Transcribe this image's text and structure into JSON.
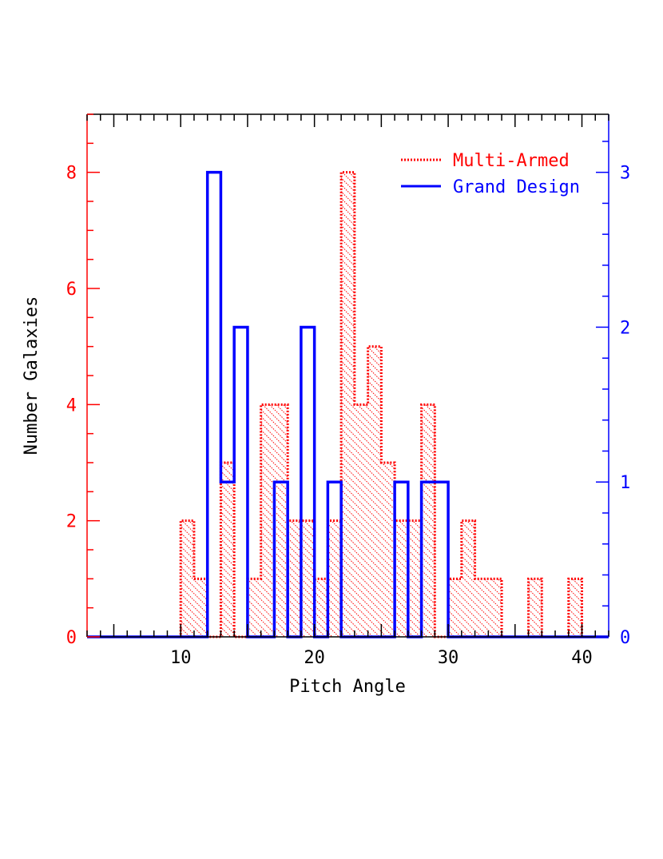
{
  "chart_data": {
    "type": "bar",
    "xlabel": "Pitch Angle",
    "ylabel": "Number Galaxies",
    "xlim": [
      3,
      42
    ],
    "y_left_lim": [
      0,
      9
    ],
    "y_right_lim": [
      0,
      3.375
    ],
    "x_ticks": [
      "10",
      "20",
      "30",
      "40"
    ],
    "x_tick_values": [
      10,
      20,
      30,
      40
    ],
    "y_left_ticks": [
      "0",
      "2",
      "4",
      "6",
      "8"
    ],
    "y_left_tick_values": [
      0,
      2,
      4,
      6,
      8
    ],
    "y_right_ticks": [
      "0",
      "1",
      "2",
      "3"
    ],
    "y_right_tick_values": [
      0,
      1,
      2,
      3
    ],
    "bin_width": 1,
    "bin_starts": [
      10,
      11,
      12,
      13,
      14,
      15,
      16,
      17,
      18,
      19,
      20,
      21,
      22,
      23,
      24,
      25,
      26,
      27,
      28,
      29,
      30,
      31,
      32,
      33,
      34,
      35,
      36,
      37,
      38,
      39
    ],
    "series": [
      {
        "name": "Multi-Armed",
        "axis": "left",
        "style": "hatched-dotted",
        "color": "#ff0000",
        "values": [
          2,
          1,
          0,
          3,
          0,
          1,
          4,
          4,
          2,
          2,
          1,
          2,
          8,
          4,
          5,
          3,
          2,
          2,
          4,
          0,
          1,
          2,
          1,
          1,
          0,
          0,
          1,
          0,
          0,
          1
        ]
      },
      {
        "name": "Grand Design",
        "axis": "right",
        "style": "solid-step",
        "color": "#0000ff",
        "values": [
          0,
          0,
          3,
          1,
          2,
          0,
          0,
          1,
          0,
          2,
          0,
          1,
          0,
          0,
          0,
          0,
          1,
          0,
          1,
          1,
          0,
          0,
          0,
          0,
          0,
          0,
          0,
          0,
          0,
          0
        ]
      }
    ],
    "legend_position": "top-right",
    "left_axis_color": "#ff0000",
    "right_axis_color": "#0000ff"
  }
}
